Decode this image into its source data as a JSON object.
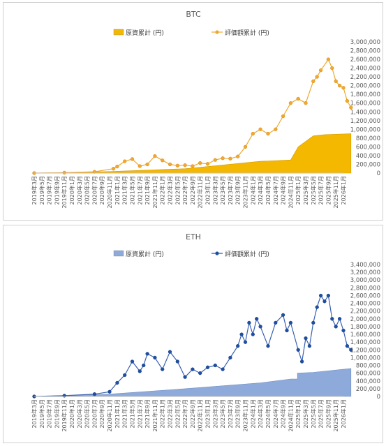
{
  "charts": [
    {
      "id": "btc",
      "chart_data": {
        "type": "area",
        "title": "BTC",
        "xlabel": "",
        "ylabel": "",
        "ylim": [
          0,
          3000000
        ],
        "yticks": [
          0,
          200000,
          400000,
          600000,
          800000,
          1000000,
          1200000,
          1400000,
          1600000,
          1800000,
          2000000,
          2200000,
          2400000,
          2600000,
          2800000,
          3000000
        ],
        "ytick_labels": [
          "0",
          "200,000",
          "400,000",
          "600,000",
          "800,000",
          "1,000,000",
          "1,200,000",
          "1,400,000",
          "1,600,000",
          "1,800,000",
          "2,000,000",
          "2,200,000",
          "2,400,000",
          "2,600,000",
          "2,800,000",
          "3,000,000"
        ],
        "x_tick_labels": [
          "2019年3月",
          "2019年5月",
          "2019年7月",
          "2019年9月",
          "2019年11月",
          "2020年1月",
          "2020年3月",
          "2020年5月",
          "2020年7月",
          "2020年9月",
          "2020年11月",
          "2021年1月",
          "2021年3月",
          "2021年5月",
          "2021年7月",
          "2021年9月",
          "2021年11月",
          "2022年1月",
          "2022年3月",
          "2022年5月",
          "2022年7月",
          "2022年9月",
          "2022年11月",
          "2023年1月",
          "2023年3月",
          "2023年5月",
          "2023年7月",
          "2023年9月",
          "2023年11月",
          "2024年1月",
          "2024年3月",
          "2024年5月",
          "2024年7月",
          "2024年9月",
          "2024年11月",
          "2025年1月",
          "2025年3月",
          "2025年5月",
          "2025年7月",
          "2025年9月",
          "2025年11月",
          "2026年1月"
        ],
        "grid": false,
        "legend": "top",
        "series": [
          {
            "name": "原資累計 (円)",
            "kind": "area",
            "color": "#f5b800",
            "x": [
              0,
              10,
              20,
              20.7,
              30,
              34,
              35,
              37,
              38.5,
              42
            ],
            "values": [
              0,
              35000,
              100000,
              110000,
              270000,
              300000,
              600000,
              850000,
              880000,
              900000
            ]
          },
          {
            "name": "評価額累計 (円)",
            "kind": "line",
            "color": "#f0a82e",
            "x": [
              0,
              4,
              8,
              10.5,
              11,
              12,
              13,
              14,
              15,
              16,
              17,
              18,
              19,
              20,
              21,
              22,
              23,
              24,
              25,
              26,
              27,
              28,
              29,
              30,
              31,
              32,
              33,
              34,
              35,
              36,
              37,
              37.5,
              38,
              39,
              39.5,
              40,
              40.5,
              41,
              41.5,
              42
            ],
            "values": [
              0,
              10000,
              30000,
              100000,
              150000,
              270000,
              320000,
              160000,
              200000,
              390000,
              290000,
              200000,
              170000,
              180000,
              160000,
              230000,
              210000,
              300000,
              340000,
              330000,
              380000,
              600000,
              900000,
              1000000,
              900000,
              1000000,
              1300000,
              1600000,
              1700000,
              1600000,
              2100000,
              2200000,
              2350000,
              2600000,
              2400000,
              2100000,
              2000000,
              1950000,
              1650000,
              1500000
            ]
          }
        ]
      }
    },
    {
      "id": "eth",
      "chart_data": {
        "type": "area",
        "title": "ETH",
        "xlabel": "",
        "ylabel": "",
        "ylim": [
          0,
          3400000
        ],
        "yticks": [
          0,
          200000,
          400000,
          600000,
          800000,
          1000000,
          1200000,
          1400000,
          1600000,
          1800000,
          2000000,
          2200000,
          2400000,
          2600000,
          2800000,
          3000000,
          3200000,
          3400000
        ],
        "ytick_labels": [
          "0",
          "200,000",
          "400,000",
          "600,000",
          "800,000",
          "1,000,000",
          "1,200,000",
          "1,400,000",
          "1,600,000",
          "1,800,000",
          "2,000,000",
          "2,200,000",
          "2,400,000",
          "2,600,000",
          "2,800,000",
          "3,000,000",
          "3,200,000",
          "3,400,000"
        ],
        "x_tick_labels": [
          "2019年3月",
          "2019年5月",
          "2019年7月",
          "2019年9月",
          "2019年11月",
          "2020年1月",
          "2020年3月",
          "2020年5月",
          "2020年7月",
          "2020年9月",
          "2020年11月",
          "2021年1月",
          "2021年3月",
          "2021年5月",
          "2021年7月",
          "2021年9月",
          "2021年11月",
          "2022年1月",
          "2022年3月",
          "2022年5月",
          "2022年7月",
          "2022年9月",
          "2022年11月",
          "2023年1月",
          "2023年3月",
          "2023年5月",
          "2023年7月",
          "2023年9月",
          "2023年11月",
          "2024年1月",
          "2024年3月",
          "2024年5月",
          "2024年7月",
          "2024年9月",
          "2024年11月",
          "2025年1月",
          "2025年3月",
          "2025年5月",
          "2025年7月",
          "2025年9月",
          "2025年11月",
          "2026年1月"
        ],
        "grid": false,
        "legend": "top",
        "series": [
          {
            "name": "原資累計 (円)",
            "kind": "area",
            "color": "#8eaadb",
            "x": [
              0,
              10,
              20,
              30,
              34,
              35,
              37,
              40,
              42
            ],
            "values": [
              0,
              60000,
              200000,
              350000,
              450000,
              600000,
              620000,
              680000,
              720000
            ],
            "step_at": 34.9
          },
          {
            "name": "評価額累計 (円)",
            "kind": "line",
            "color": "#1f4fa0",
            "x": [
              0,
              4,
              8,
              10,
              11,
              12,
              13,
              14,
              14.5,
              15,
              16,
              17,
              18,
              19,
              20,
              21,
              22,
              23,
              24,
              25,
              26,
              27,
              27.5,
              28,
              28.5,
              29,
              29.5,
              30,
              31,
              32,
              33,
              33.5,
              34,
              35,
              35.5,
              36,
              36.5,
              37,
              37.5,
              38,
              38.5,
              39,
              39.5,
              40,
              40.5,
              41,
              41.5,
              42
            ],
            "values": [
              0,
              20000,
              60000,
              120000,
              350000,
              550000,
              900000,
              650000,
              800000,
              1100000,
              1000000,
              700000,
              1150000,
              900000,
              500000,
              700000,
              600000,
              750000,
              800000,
              700000,
              1000000,
              1300000,
              1600000,
              1400000,
              1900000,
              1600000,
              2000000,
              1800000,
              1300000,
              1900000,
              2100000,
              1700000,
              1900000,
              1200000,
              900000,
              1500000,
              1300000,
              1900000,
              2300000,
              2600000,
              2450000,
              2600000,
              2000000,
              1800000,
              2000000,
              1700000,
              1300000,
              1200000
            ]
          }
        ]
      }
    }
  ]
}
